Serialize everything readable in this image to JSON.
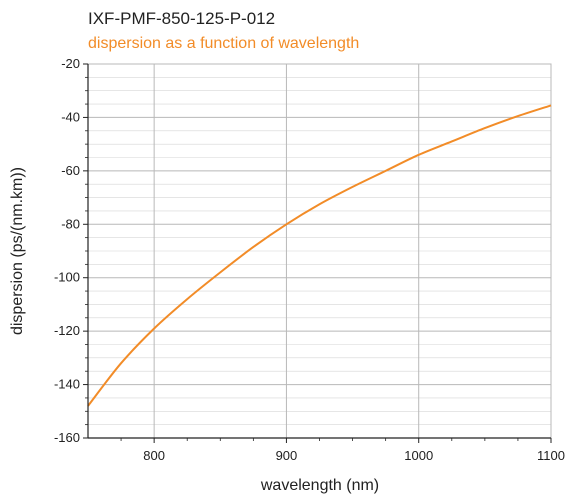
{
  "chart_data": {
    "type": "line",
    "title": "IXF-PMF-850-125-P-012",
    "subtitle": "dispersion as a function of wavelength",
    "xlabel": "wavelength (nm)",
    "ylabel": "dispersion (ps/(nm.km))",
    "xlim": [
      750,
      1100
    ],
    "ylim": [
      -160,
      -20
    ],
    "xticks": [
      800,
      900,
      1000,
      1100
    ],
    "yticks": [
      -20,
      -40,
      -60,
      -80,
      -100,
      -120,
      -140,
      -160
    ],
    "grid": true,
    "series": [
      {
        "x": [
          750,
          775,
          800,
          825,
          850,
          875,
          900,
          925,
          950,
          975,
          1000,
          1025,
          1050,
          1075,
          1100
        ],
        "y": [
          -148,
          -132,
          -119,
          -108,
          -98,
          -88.5,
          -80,
          -72.5,
          -66,
          -60,
          -54,
          -49,
          -44,
          -39.5,
          -35.5
        ]
      }
    ]
  },
  "colors": {
    "series": "#f28c28",
    "subtitle": "#f28c28",
    "grid_major": "#b8b8b8",
    "grid_minor": "#d6d6d6",
    "axis": "#222222"
  }
}
